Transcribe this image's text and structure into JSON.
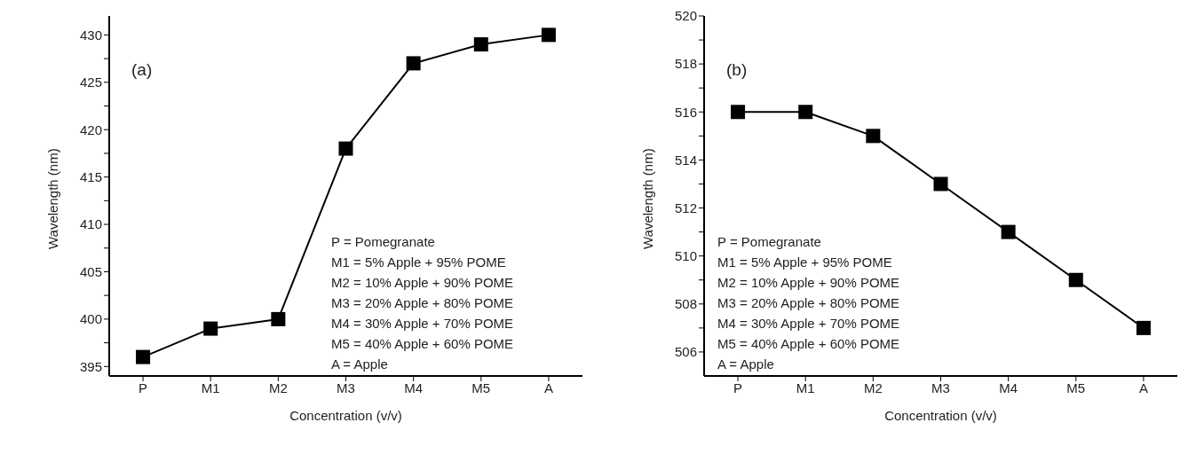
{
  "chart_data": [
    {
      "type": "line",
      "xlabel": "Concentration (v/v)",
      "ylabel": "Wavelength (nm)",
      "categories": [
        "P",
        "M1",
        "M2",
        "M3",
        "M4",
        "M5",
        "A"
      ],
      "series": [
        {
          "color": "#000000",
          "values": [
            396,
            399,
            400,
            418,
            427,
            429,
            430
          ]
        }
      ],
      "ylim": [
        394,
        432
      ],
      "yticks": [
        395,
        {
          "value": 397.5,
          "label": null
        },
        400,
        {
          "value": 402.5,
          "label": null
        },
        405,
        {
          "value": 407.5,
          "label": null
        },
        410,
        {
          "value": 412.5,
          "label": null
        },
        415,
        {
          "value": 417.5,
          "label": null
        },
        420,
        {
          "value": 422.5,
          "label": null
        },
        425,
        {
          "value": 427.5,
          "label": null
        },
        430
      ],
      "marker": "square",
      "line_style": "solid",
      "grid": false,
      "legend": false,
      "annotations": [
        "(a)",
        "P = Pomegranate",
        "M1 = 5% Apple + 95% POME",
        "M2 = 10% Apple + 90% POME",
        "M3 = 20% Apple + 80% POME",
        "M4 = 30% Apple + 70% POME",
        "M5 = 40% Apple + 60% POME",
        "A = Apple"
      ]
    },
    {
      "type": "line",
      "xlabel": "Concentration (v/v)",
      "ylabel": "Wavelength (nm)",
      "categories": [
        "P",
        "M1",
        "M2",
        "M3",
        "M4",
        "M5",
        "A"
      ],
      "series": [
        {
          "color": "#000000",
          "values": [
            516,
            516,
            515,
            513,
            511,
            509,
            507
          ]
        }
      ],
      "ylim": [
        505,
        520
      ],
      "yticks": [
        506,
        {
          "value": 507,
          "label": null
        },
        508,
        {
          "value": 509,
          "label": null
        },
        510,
        {
          "value": 511,
          "label": null
        },
        512,
        {
          "value": 513,
          "label": null
        },
        514,
        {
          "value": 515,
          "label": null
        },
        516,
        {
          "value": 517,
          "label": null
        },
        518,
        {
          "value": 519,
          "label": null
        },
        520
      ],
      "marker": "square",
      "line_style": "solid",
      "grid": false,
      "legend": false,
      "annotations": [
        "(b)",
        "P = Pomegranate",
        "M1 = 5% Apple + 95% POME",
        "M2 = 10% Apple + 90% POME",
        "M3 = 20% Apple + 80% POME",
        "M4 = 30% Apple + 70% POME",
        "M5 = 40% Apple + 60% POME",
        "A = Apple"
      ]
    }
  ]
}
